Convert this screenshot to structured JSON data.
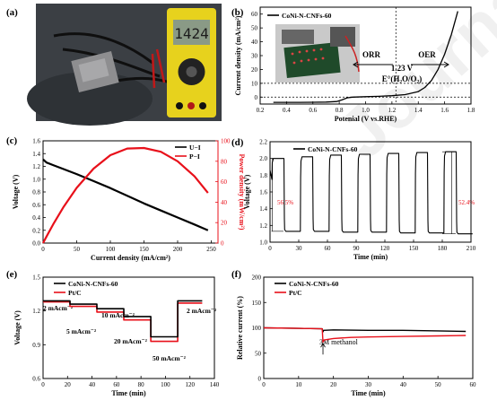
{
  "figure": {
    "watermark": "Journal Pre-proof"
  },
  "colors": {
    "black": "#000000",
    "red": "#e8101a",
    "photo_bg": "#3b3f44",
    "multimeter": "#e7d21d",
    "watermark": "#eeeeee"
  },
  "chart_data": [
    {
      "panel": "(a)",
      "type": "photo",
      "multimeter_display": "1424"
    },
    {
      "panel": "(b)",
      "type": "line",
      "xlabel": "Potenial (V vs.RHE)",
      "ylabel": "Current density (mA/cm²)",
      "xlim": [
        0.2,
        1.8
      ],
      "ylim": [
        -5,
        65
      ],
      "xticks": [
        "0.2",
        "0.4",
        "0.6",
        "0.8",
        "1.0",
        "1.2",
        "1.4",
        "1.6",
        "1.8"
      ],
      "yticks": [
        "0",
        "10",
        "20",
        "30",
        "40",
        "50",
        "60"
      ],
      "legend": [
        "CoNi-N-CNFs-60"
      ],
      "annotations": {
        "orr": "ORR",
        "oer": "OER",
        "potential": "1.23 V",
        "equilibrium": "E°(H₂O/O₂)"
      },
      "vline": 1.23,
      "hlines": [
        0,
        10
      ],
      "series": [
        {
          "name": "CoNi-N-CNFs-60",
          "color": "#000000",
          "x": [
            0.3,
            0.4,
            0.5,
            0.6,
            0.7,
            0.78,
            0.82,
            0.86,
            0.9,
            1.0,
            1.1,
            1.2,
            1.3,
            1.4,
            1.45,
            1.5,
            1.55,
            1.6,
            1.65,
            1.7
          ],
          "y": [
            -3.8,
            -3.8,
            -3.8,
            -3.7,
            -3.6,
            -3.2,
            -2.0,
            -0.5,
            0.0,
            0.3,
            0.6,
            1.0,
            1.8,
            4.0,
            7.0,
            12.0,
            20.0,
            31.0,
            45.0,
            62.0
          ]
        }
      ]
    },
    {
      "panel": "(c)",
      "type": "line",
      "xlabel": "Current density (mA/cm²)",
      "ylabel": "Voltage (V)",
      "ylabel2": "Power density (mW/cm²)",
      "xlim": [
        0,
        260
      ],
      "ylim": [
        0,
        1.6
      ],
      "y2lim": [
        0,
        100
      ],
      "xticks": [
        "0",
        "50",
        "100",
        "150",
        "200",
        "250"
      ],
      "yticks": [
        "0.0",
        "0.2",
        "0.4",
        "0.6",
        "0.8",
        "1.0",
        "1.2",
        "1.4",
        "1.6"
      ],
      "y2ticks": [
        "0",
        "20",
        "40",
        "60",
        "80",
        "100"
      ],
      "legend": [
        "U−I",
        "P−I"
      ],
      "series": [
        {
          "name": "U−I",
          "axis": "left",
          "color": "#000000",
          "x": [
            0,
            5,
            15,
            30,
            50,
            75,
            100,
            125,
            150,
            175,
            200,
            225,
            245
          ],
          "y": [
            1.31,
            1.26,
            1.22,
            1.16,
            1.08,
            0.97,
            0.86,
            0.74,
            0.62,
            0.51,
            0.4,
            0.29,
            0.2
          ]
        },
        {
          "name": "P−I",
          "axis": "right",
          "color": "#e8101a",
          "x": [
            0,
            5,
            15,
            30,
            50,
            75,
            100,
            125,
            150,
            175,
            200,
            225,
            245
          ],
          "y": [
            0,
            6.3,
            18.3,
            34.8,
            54,
            72.8,
            86,
            92.5,
            93,
            89.3,
            80,
            65.3,
            49
          ]
        }
      ]
    },
    {
      "panel": "(d)",
      "type": "line",
      "xlabel": "Time (min)",
      "ylabel": "Voltage (V)",
      "xlim": [
        0,
        210
      ],
      "ylim": [
        1.0,
        2.2
      ],
      "xticks": [
        "0",
        "30",
        "60",
        "90",
        "120",
        "150",
        "180",
        "210"
      ],
      "yticks": [
        "1.0",
        "1.2",
        "1.4",
        "1.6",
        "1.8",
        "2.0",
        "2.2"
      ],
      "legend": [
        "CoNi-N-CNFs-60"
      ],
      "annotations": {
        "left_pct": "56.5%",
        "right_pct": "52.4%"
      },
      "cycles": [
        {
          "start": 2,
          "end": 15,
          "high": 2.0,
          "low": 1.13
        },
        {
          "start": 32,
          "end": 45,
          "high": 2.02,
          "low": 1.13
        },
        {
          "start": 62,
          "end": 75,
          "high": 2.04,
          "low": 1.12
        },
        {
          "start": 92,
          "end": 105,
          "high": 2.05,
          "low": 1.12
        },
        {
          "start": 122,
          "end": 135,
          "high": 2.06,
          "low": 1.11
        },
        {
          "start": 152,
          "end": 165,
          "high": 2.07,
          "low": 1.11
        },
        {
          "start": 182,
          "end": 195,
          "high": 2.08,
          "low": 1.1
        }
      ]
    },
    {
      "panel": "(e)",
      "type": "line",
      "xlabel": "Time (min)",
      "ylabel": "Voltage (V)",
      "xlim": [
        0,
        140
      ],
      "ylim": [
        0.6,
        1.5
      ],
      "xticks": [
        "0",
        "20",
        "40",
        "60",
        "80",
        "100",
        "120",
        "140"
      ],
      "yticks": [
        "0.6",
        "0.9",
        "1.2",
        "1.5"
      ],
      "legend": [
        "CoNi-N-CNFs-60",
        "Pt/C"
      ],
      "step_labels": [
        "2 mAcm⁻²",
        "5 mAcm⁻²",
        "10 mAcm⁻²",
        "20 mAcm⁻²",
        "50 mAcm⁻²",
        "2 mAcm⁻²"
      ],
      "series": [
        {
          "name": "CoNi-N-CNFs-60",
          "color": "#000000",
          "x": [
            0,
            22,
            22,
            44,
            44,
            66,
            66,
            88,
            88,
            110,
            110,
            130
          ],
          "y": [
            1.29,
            1.29,
            1.26,
            1.26,
            1.22,
            1.22,
            1.15,
            1.15,
            0.97,
            0.97,
            1.29,
            1.29
          ]
        },
        {
          "name": "Pt/C",
          "color": "#e8101a",
          "x": [
            0,
            22,
            22,
            44,
            44,
            66,
            66,
            88,
            88,
            110,
            110,
            130
          ],
          "y": [
            1.28,
            1.28,
            1.24,
            1.24,
            1.19,
            1.19,
            1.12,
            1.12,
            0.93,
            0.93,
            1.27,
            1.27
          ]
        }
      ]
    },
    {
      "panel": "(f)",
      "type": "line",
      "xlabel": "Time (min)",
      "ylabel": "Relative current (%)",
      "xlim": [
        0,
        60
      ],
      "ylim": [
        0,
        200
      ],
      "xticks": [
        "0",
        "10",
        "20",
        "30",
        "40",
        "50",
        "60"
      ],
      "yticks": [
        "0",
        "50",
        "100",
        "150",
        "200"
      ],
      "legend": [
        "CoNi-N-CNFs-60",
        "Pt/C"
      ],
      "annotation": "3M methanol",
      "series": [
        {
          "name": "CoNi-N-CNFs-60",
          "color": "#000000",
          "x": [
            0,
            10,
            16.8,
            17,
            17.2,
            20,
            30,
            40,
            50,
            58
          ],
          "y": [
            100,
            99,
            98,
            92,
            95,
            96,
            95,
            95,
            94,
            93
          ]
        },
        {
          "name": "Pt/C",
          "color": "#e8101a",
          "x": [
            0,
            10,
            16.8,
            17,
            17.3,
            20,
            25,
            30,
            40,
            50,
            58
          ],
          "y": [
            100,
            99,
            98,
            72,
            76,
            79,
            81,
            82,
            83,
            84,
            85
          ]
        }
      ]
    }
  ]
}
